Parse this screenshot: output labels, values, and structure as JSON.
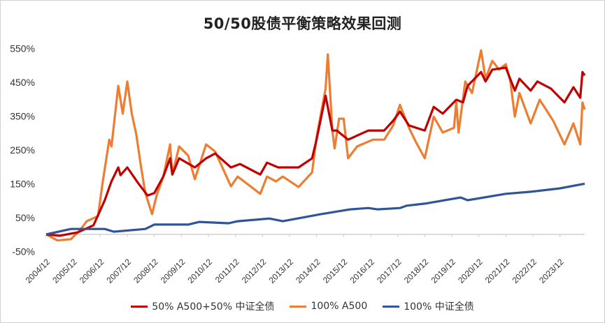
{
  "chart_data": {
    "type": "line",
    "title": "50/50股债平衡策略效果回测",
    "xlabel": "",
    "ylabel": "",
    "x_tick_labels": [
      "2004/12",
      "2005/12",
      "2006/12",
      "2007/12",
      "2008/12",
      "2009/12",
      "2010/12",
      "2011/12",
      "2012/12",
      "2013/12",
      "2014/12",
      "2015/12",
      "2016/12",
      "2017/12",
      "2018/12",
      "2019/12",
      "2020/12",
      "2021/12",
      "2022/12",
      "2023/12"
    ],
    "y_tick_values": [
      550,
      450,
      350,
      250,
      150,
      50,
      -50
    ],
    "y_tick_labels": [
      "550%",
      "450%",
      "350%",
      "250%",
      "150%",
      "50%",
      "-50%"
    ],
    "ylim": [
      -50,
      550
    ],
    "xlim": [
      "2004-12",
      "2024-11"
    ],
    "grid": false,
    "legend_position": "bottom",
    "series": [
      {
        "name": "50% A500+50% 中证全债",
        "color": "#c00000",
        "points": [
          [
            "2004-12",
            0
          ],
          [
            "2005-06",
            -4
          ],
          [
            "2006-02",
            6
          ],
          [
            "2006-09",
            27
          ],
          [
            "2007-02",
            101
          ],
          [
            "2007-05",
            157
          ],
          [
            "2007-08",
            198
          ],
          [
            "2007-09",
            175
          ],
          [
            "2007-12",
            198
          ],
          [
            "2008-05",
            150
          ],
          [
            "2008-09",
            115
          ],
          [
            "2008-12",
            122
          ],
          [
            "2009-04",
            171
          ],
          [
            "2009-07",
            225
          ],
          [
            "2009-08",
            177
          ],
          [
            "2009-11",
            225
          ],
          [
            "2010-06",
            198
          ],
          [
            "2010-11",
            225
          ],
          [
            "2011-03",
            239
          ],
          [
            "2011-10",
            198
          ],
          [
            "2012-02",
            208
          ],
          [
            "2012-11",
            177
          ],
          [
            "2013-02",
            212
          ],
          [
            "2013-07",
            198
          ],
          [
            "2014-04",
            198
          ],
          [
            "2014-10",
            225
          ],
          [
            "2014-12",
            280
          ],
          [
            "2015-04",
            410
          ],
          [
            "2015-07",
            307
          ],
          [
            "2015-09",
            307
          ],
          [
            "2016-02",
            280
          ],
          [
            "2016-11",
            307
          ],
          [
            "2017-06",
            307
          ],
          [
            "2017-10",
            336
          ],
          [
            "2018-01",
            363
          ],
          [
            "2018-05",
            322
          ],
          [
            "2018-12",
            307
          ],
          [
            "2019-04",
            377
          ],
          [
            "2019-08",
            357
          ],
          [
            "2020-02",
            398
          ],
          [
            "2020-05",
            390
          ],
          [
            "2020-07",
            439
          ],
          [
            "2021-01",
            480
          ],
          [
            "2021-03",
            452
          ],
          [
            "2021-06",
            487
          ],
          [
            "2021-12",
            493
          ],
          [
            "2022-04",
            425
          ],
          [
            "2022-06",
            460
          ],
          [
            "2022-11",
            425
          ],
          [
            "2023-02",
            452
          ],
          [
            "2023-08",
            431
          ],
          [
            "2024-02",
            390
          ],
          [
            "2024-06",
            435
          ],
          [
            "2024-09",
            404
          ],
          [
            "2024-10",
            480
          ],
          [
            "2024-11",
            470
          ]
        ]
      },
      {
        "name": "100% A500",
        "color": "#ed7d31",
        "points": [
          [
            "2004-12",
            0
          ],
          [
            "2005-05",
            -18
          ],
          [
            "2005-11",
            -14
          ],
          [
            "2006-03",
            12
          ],
          [
            "2006-06",
            39
          ],
          [
            "2006-11",
            54
          ],
          [
            "2007-01",
            150
          ],
          [
            "2007-04",
            280
          ],
          [
            "2007-05",
            260
          ],
          [
            "2007-08",
            439
          ],
          [
            "2007-10",
            357
          ],
          [
            "2007-12",
            452
          ],
          [
            "2008-02",
            357
          ],
          [
            "2008-04",
            295
          ],
          [
            "2008-06",
            204
          ],
          [
            "2008-08",
            122
          ],
          [
            "2008-11",
            60
          ],
          [
            "2009-01",
            115
          ],
          [
            "2009-04",
            171
          ],
          [
            "2009-07",
            266
          ],
          [
            "2009-08",
            177
          ],
          [
            "2009-11",
            260
          ],
          [
            "2010-03",
            233
          ],
          [
            "2010-06",
            163
          ],
          [
            "2010-11",
            266
          ],
          [
            "2011-03",
            245
          ],
          [
            "2011-10",
            142
          ],
          [
            "2012-01",
            171
          ],
          [
            "2012-11",
            120
          ],
          [
            "2013-02",
            171
          ],
          [
            "2013-06",
            157
          ],
          [
            "2013-09",
            171
          ],
          [
            "2014-04",
            140
          ],
          [
            "2014-10",
            183
          ],
          [
            "2014-12",
            287
          ],
          [
            "2015-04",
            431
          ],
          [
            "2015-05",
            532
          ],
          [
            "2015-07",
            307
          ],
          [
            "2015-08",
            254
          ],
          [
            "2015-10",
            342
          ],
          [
            "2015-12",
            342
          ],
          [
            "2016-02",
            225
          ],
          [
            "2016-06",
            260
          ],
          [
            "2017-01",
            280
          ],
          [
            "2017-06",
            280
          ],
          [
            "2017-10",
            322
          ],
          [
            "2018-01",
            383
          ],
          [
            "2018-05",
            315
          ],
          [
            "2018-08",
            274
          ],
          [
            "2018-12",
            225
          ],
          [
            "2019-04",
            348
          ],
          [
            "2019-08",
            301
          ],
          [
            "2020-01",
            315
          ],
          [
            "2020-02",
            390
          ],
          [
            "2020-03",
            301
          ],
          [
            "2020-06",
            452
          ],
          [
            "2020-09",
            418
          ],
          [
            "2021-01",
            544
          ],
          [
            "2021-03",
            460
          ],
          [
            "2021-06",
            513
          ],
          [
            "2021-09",
            487
          ],
          [
            "2021-12",
            503
          ],
          [
            "2022-02",
            452
          ],
          [
            "2022-04",
            348
          ],
          [
            "2022-06",
            418
          ],
          [
            "2022-11",
            328
          ],
          [
            "2023-03",
            398
          ],
          [
            "2023-09",
            336
          ],
          [
            "2024-02",
            266
          ],
          [
            "2024-06",
            328
          ],
          [
            "2024-09",
            266
          ],
          [
            "2024-10",
            390
          ],
          [
            "2024-11",
            369
          ]
        ]
      },
      {
        "name": "100% 中证全债",
        "color": "#2f5597",
        "points": [
          [
            "2004-12",
            0
          ],
          [
            "2005-11",
            16
          ],
          [
            "2007-02",
            16
          ],
          [
            "2007-06",
            8
          ],
          [
            "2008-08",
            16
          ],
          [
            "2008-12",
            29
          ],
          [
            "2010-03",
            29
          ],
          [
            "2010-08",
            37
          ],
          [
            "2011-09",
            33
          ],
          [
            "2012-01",
            39
          ],
          [
            "2013-03",
            47
          ],
          [
            "2013-09",
            39
          ],
          [
            "2015-02",
            60
          ],
          [
            "2016-03",
            74
          ],
          [
            "2016-11",
            78
          ],
          [
            "2017-03",
            74
          ],
          [
            "2018-01",
            78
          ],
          [
            "2018-04",
            85
          ],
          [
            "2018-12",
            91
          ],
          [
            "2020-04",
            109
          ],
          [
            "2020-07",
            101
          ],
          [
            "2021-12",
            120
          ],
          [
            "2022-11",
            126
          ],
          [
            "2023-12",
            136
          ],
          [
            "2024-11",
            150
          ]
        ]
      }
    ]
  }
}
